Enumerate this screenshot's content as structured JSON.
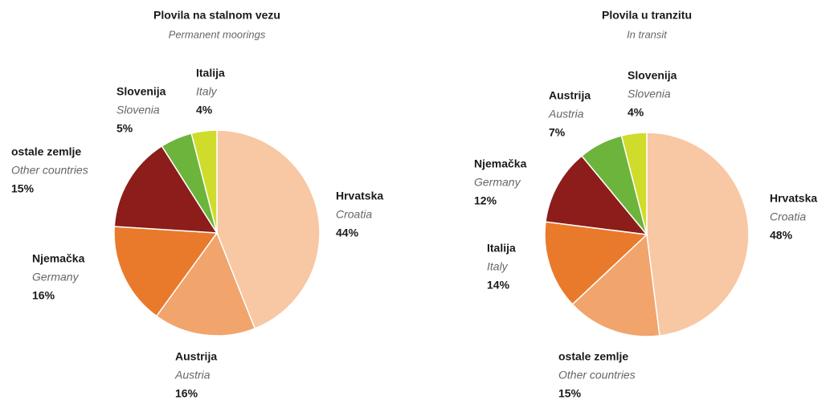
{
  "chart_data": [
    {
      "type": "pie",
      "title": "Plovila na stalnom vezu",
      "subtitle": "Permanent moorings",
      "categories": [
        "Hrvatska",
        "Austrija",
        "Njemačka",
        "ostale zemlje",
        "Slovenija",
        "Italija"
      ],
      "category_translations": [
        "Croatia",
        "Austria",
        "Germany",
        "Other countries",
        "Slovenia",
        "Italy"
      ],
      "values": [
        44,
        16,
        16,
        15,
        5,
        4
      ],
      "value_labels": [
        "44%",
        "16%",
        "16%",
        "15%",
        "5%",
        "4%"
      ],
      "colors": [
        "#f8c7a3",
        "#f1a46c",
        "#e97a2c",
        "#8c1d1b",
        "#6cb43c",
        "#cfdc2b"
      ]
    },
    {
      "type": "pie",
      "title": "Plovila u tranzitu",
      "subtitle": "In transit",
      "categories": [
        "Hrvatska",
        "ostale zemlje",
        "Italija",
        "Njemačka",
        "Austrija",
        "Slovenija"
      ],
      "category_translations": [
        "Croatia",
        "Other countries",
        "Italy",
        "Germany",
        "Austria",
        "Slovenia"
      ],
      "values": [
        48,
        15,
        14,
        12,
        7,
        4
      ],
      "value_labels": [
        "48%",
        "15%",
        "14%",
        "12%",
        "7%",
        "4%"
      ],
      "colors": [
        "#f8c7a3",
        "#f1a46c",
        "#e97a2c",
        "#8c1d1b",
        "#6cb43c",
        "#cfdc2b"
      ]
    }
  ]
}
